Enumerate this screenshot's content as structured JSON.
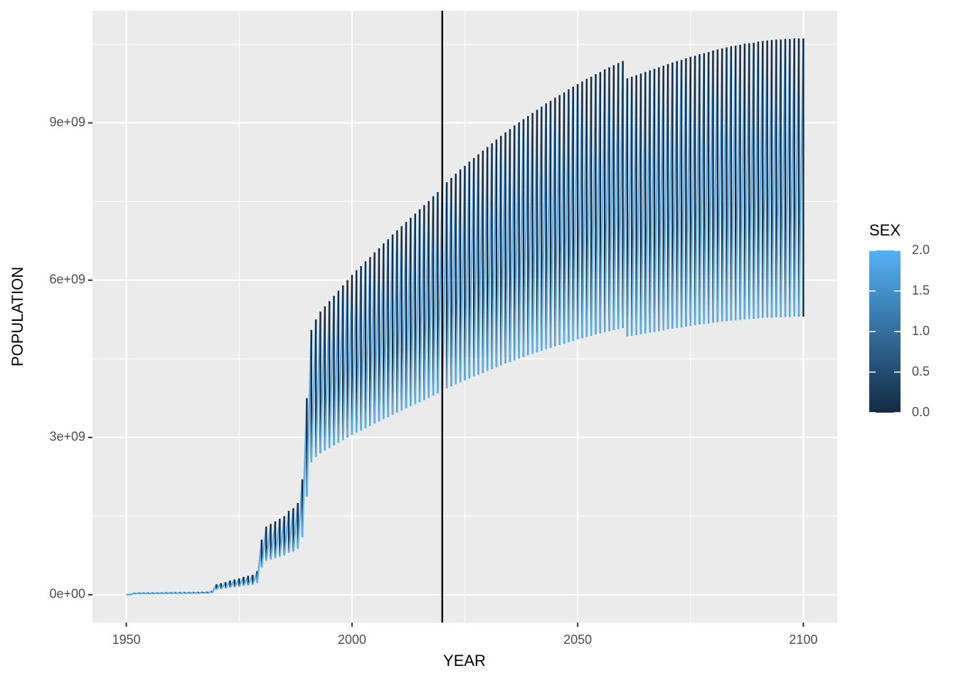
{
  "chart_data": {
    "type": "line",
    "xlabel": "YEAR",
    "ylabel": "POPULATION",
    "x": [
      1950,
      1951,
      1952,
      1953,
      1954,
      1955,
      1956,
      1957,
      1958,
      1959,
      1960,
      1961,
      1962,
      1963,
      1964,
      1965,
      1966,
      1967,
      1968,
      1969,
      1970,
      1971,
      1972,
      1973,
      1974,
      1975,
      1976,
      1977,
      1978,
      1979,
      1980,
      1981,
      1982,
      1983,
      1984,
      1985,
      1986,
      1987,
      1988,
      1989,
      1990,
      1991,
      1992,
      1993,
      1994,
      1995,
      1996,
      1997,
      1998,
      1999,
      2000,
      2001,
      2002,
      2003,
      2004,
      2005,
      2006,
      2007,
      2008,
      2009,
      2010,
      2011,
      2012,
      2013,
      2014,
      2015,
      2016,
      2017,
      2018,
      2019,
      2020,
      2021,
      2022,
      2023,
      2024,
      2025,
      2026,
      2027,
      2028,
      2029,
      2030,
      2031,
      2032,
      2033,
      2034,
      2035,
      2036,
      2037,
      2038,
      2039,
      2040,
      2041,
      2042,
      2043,
      2044,
      2045,
      2046,
      2047,
      2048,
      2049,
      2050,
      2051,
      2052,
      2053,
      2054,
      2055,
      2056,
      2057,
      2058,
      2059,
      2060,
      2061,
      2062,
      2063,
      2064,
      2065,
      2066,
      2067,
      2068,
      2069,
      2070,
      2071,
      2072,
      2073,
      2074,
      2075,
      2076,
      2077,
      2078,
      2079,
      2080,
      2081,
      2082,
      2083,
      2084,
      2085,
      2086,
      2087,
      2088,
      2089,
      2090,
      2091,
      2092,
      2093,
      2094,
      2095,
      2096,
      2097,
      2098,
      2099,
      2100
    ],
    "series": [
      {
        "sex": 0,
        "values": [
          5000000.0,
          5000000.0,
          35000000.0,
          36000000.0,
          37000000.0,
          38000000.0,
          39000000.0,
          40000000.0,
          41000000.0,
          42000000.0,
          43000000.0,
          44000000.0,
          45000000.0,
          46000000.0,
          47000000.0,
          48000000.0,
          50000000.0,
          52000000.0,
          55000000.0,
          70000000.0,
          200000000.0,
          220000000.0,
          240000000.0,
          270000000.0,
          290000000.0,
          310000000.0,
          340000000.0,
          360000000.0,
          380000000.0,
          450000000.0,
          1050000000.0,
          1300000000.0,
          1350000000.0,
          1400000000.0,
          1450000000.0,
          1500000000.0,
          1600000000.0,
          1650000000.0,
          1750000000.0,
          2200000000.0,
          3750000000.0,
          5050000000.0,
          5250000000.0,
          5400000000.0,
          5500000000.0,
          5600000000.0,
          5700000000.0,
          5800000000.0,
          5900000000.0,
          6000000000.0,
          6100000000.0,
          6190000000.0,
          6270000000.0,
          6360000000.0,
          6440000000.0,
          6530000000.0,
          6610000000.0,
          6700000000.0,
          6780000000.0,
          6870000000.0,
          6950000000.0,
          7030000000.0,
          7110000000.0,
          7190000000.0,
          7270000000.0,
          7350000000.0,
          7430000000.0,
          7510000000.0,
          7600000000.0,
          7680000000.0,
          7760000000.0,
          7870000000.0,
          7950000000.0,
          8030000000.0,
          8110000000.0,
          8180000000.0,
          8260000000.0,
          8330000000.0,
          8400000000.0,
          8470000000.0,
          8540000000.0,
          8610000000.0,
          8680000000.0,
          8750000000.0,
          8820000000.0,
          8880000000.0,
          8950000000.0,
          9010000000.0,
          9070000000.0,
          9130000000.0,
          9190000000.0,
          9250000000.0,
          9310000000.0,
          9370000000.0,
          9420000000.0,
          9480000000.0,
          9530000000.0,
          9580000000.0,
          9640000000.0,
          9690000000.0,
          9740000000.0,
          9790000000.0,
          9840000000.0,
          9880000000.0,
          9930000000.0,
          9970000000.0,
          10020000000.0,
          10060000000.0,
          10100000000.0,
          10140000000.0,
          10180000000.0,
          9850000000.0,
          9880000000.0,
          9910000000.0,
          9940000000.0,
          9970000000.0,
          10000000000.0,
          10030000000.0,
          10060000000.0,
          10090000000.0,
          10120000000.0,
          10150000000.0,
          10180000000.0,
          10200000000.0,
          10230000000.0,
          10260000000.0,
          10280000000.0,
          10310000000.0,
          10330000000.0,
          10350000000.0,
          10380000000.0,
          10400000000.0,
          10420000000.0,
          10440000000.0,
          10460000000.0,
          10470000000.0,
          10490000000.0,
          10510000000.0,
          10520000000.0,
          10530000000.0,
          10550000000.0,
          10560000000.0,
          10570000000.0,
          10580000000.0,
          10590000000.0,
          10590000000.0,
          10600000000.0,
          10600000000.0,
          10610000000.0,
          10610000000.0,
          10610000000.0
        ]
      },
      {
        "sex": 1,
        "values": [
          2500000.0,
          2500000.0,
          17500000.0,
          18000000.0,
          18500000.0,
          19000000.0,
          19500000.0,
          20000000.0,
          20500000.0,
          21000000.0,
          21500000.0,
          22000000.0,
          22500000.0,
          23000000.0,
          23500000.0,
          24000000.0,
          25000000.0,
          26000000.0,
          27500000.0,
          35000000.0,
          100000000.0,
          110000000.0,
          120000000.0,
          135000000.0,
          145000000.0,
          155000000.0,
          170000000.0,
          180000000.0,
          190000000.0,
          225000000.0,
          525000000.0,
          650000000.0,
          675000000.0,
          700000000.0,
          725000000.0,
          750000000.0,
          800000000.0,
          825000000.0,
          875000000.0,
          1100000000.0,
          1875000000.0,
          2525000000.0,
          2625000000.0,
          2700000000.0,
          2750000000.0,
          2800000000.0,
          2850000000.0,
          2900000000.0,
          2950000000.0,
          3000000000.0,
          3050000000.0,
          3095000000.0,
          3135000000.0,
          3180000000.0,
          3220000000.0,
          3265000000.0,
          3305000000.0,
          3350000000.0,
          3390000000.0,
          3435000000.0,
          3475000000.0,
          3515000000.0,
          3555000000.0,
          3595000000.0,
          3635000000.0,
          3675000000.0,
          3715000000.0,
          3755000000.0,
          3800000000.0,
          3840000000.0,
          3880000000.0,
          3935000000.0,
          3975000000.0,
          4015000000.0,
          4055000000.0,
          4090000000.0,
          4130000000.0,
          4165000000.0,
          4200000000.0,
          4235000000.0,
          4270000000.0,
          4305000000.0,
          4340000000.0,
          4375000000.0,
          4410000000.0,
          4440000000.0,
          4475000000.0,
          4505000000.0,
          4535000000.0,
          4565000000.0,
          4595000000.0,
          4625000000.0,
          4655000000.0,
          4685000000.0,
          4710000000.0,
          4740000000.0,
          4765000000.0,
          4790000000.0,
          4820000000.0,
          4845000000.0,
          4870000000.0,
          4895000000.0,
          4920000000.0,
          4940000000.0,
          4965000000.0,
          4985000000.0,
          5010000000.0,
          5030000000.0,
          5050000000.0,
          5070000000.0,
          5090000000.0,
          4925000000.0,
          4940000000.0,
          4955000000.0,
          4970000000.0,
          4985000000.0,
          5000000000.0,
          5015000000.0,
          5030000000.0,
          5045000000.0,
          5060000000.0,
          5075000000.0,
          5090000000.0,
          5100000000.0,
          5115000000.0,
          5130000000.0,
          5140000000.0,
          5155000000.0,
          5165000000.0,
          5175000000.0,
          5190000000.0,
          5200000000.0,
          5210000000.0,
          5220000000.0,
          5230000000.0,
          5235000000.0,
          5245000000.0,
          5255000000.0,
          5260000000.0,
          5265000000.0,
          5275000000.0,
          5280000000.0,
          5285000000.0,
          5290000000.0,
          5295000000.0,
          5295000000.0,
          5300000000.0,
          5300000000.0,
          5305000000.0,
          5305000000.0,
          5305000000.0
        ]
      },
      {
        "sex": 2,
        "values": [
          2500000.0,
          2500000.0,
          17500000.0,
          18000000.0,
          18500000.0,
          19000000.0,
          19500000.0,
          20000000.0,
          20500000.0,
          21000000.0,
          21500000.0,
          22000000.0,
          22500000.0,
          23000000.0,
          23500000.0,
          24000000.0,
          25000000.0,
          26000000.0,
          27500000.0,
          35000000.0,
          100000000.0,
          110000000.0,
          120000000.0,
          135000000.0,
          145000000.0,
          155000000.0,
          170000000.0,
          180000000.0,
          190000000.0,
          225000000.0,
          525000000.0,
          650000000.0,
          675000000.0,
          700000000.0,
          725000000.0,
          750000000.0,
          800000000.0,
          825000000.0,
          875000000.0,
          1100000000.0,
          1875000000.0,
          2525000000.0,
          2625000000.0,
          2700000000.0,
          2750000000.0,
          2800000000.0,
          2850000000.0,
          2900000000.0,
          2950000000.0,
          3000000000.0,
          3050000000.0,
          3095000000.0,
          3135000000.0,
          3180000000.0,
          3220000000.0,
          3265000000.0,
          3305000000.0,
          3350000000.0,
          3390000000.0,
          3435000000.0,
          3475000000.0,
          3515000000.0,
          3555000000.0,
          3595000000.0,
          3635000000.0,
          3675000000.0,
          3715000000.0,
          3755000000.0,
          3800000000.0,
          3840000000.0,
          3880000000.0,
          3935000000.0,
          3975000000.0,
          4015000000.0,
          4055000000.0,
          4090000000.0,
          4130000000.0,
          4165000000.0,
          4200000000.0,
          4235000000.0,
          4270000000.0,
          4305000000.0,
          4340000000.0,
          4375000000.0,
          4410000000.0,
          4440000000.0,
          4475000000.0,
          4505000000.0,
          4535000000.0,
          4565000000.0,
          4595000000.0,
          4625000000.0,
          4655000000.0,
          4685000000.0,
          4710000000.0,
          4740000000.0,
          4765000000.0,
          4790000000.0,
          4820000000.0,
          4845000000.0,
          4870000000.0,
          4895000000.0,
          4920000000.0,
          4940000000.0,
          4965000000.0,
          4985000000.0,
          5010000000.0,
          5030000000.0,
          5050000000.0,
          5070000000.0,
          5090000000.0,
          4925000000.0,
          4940000000.0,
          4955000000.0,
          4970000000.0,
          4985000000.0,
          5000000000.0,
          5015000000.0,
          5030000000.0,
          5045000000.0,
          5060000000.0,
          5075000000.0,
          5090000000.0,
          5100000000.0,
          5115000000.0,
          5130000000.0,
          5140000000.0,
          5155000000.0,
          5165000000.0,
          5175000000.0,
          5190000000.0,
          5200000000.0,
          5210000000.0,
          5220000000.0,
          5230000000.0,
          5235000000.0,
          5245000000.0,
          5255000000.0,
          5260000000.0,
          5265000000.0,
          5275000000.0,
          5280000000.0,
          5285000000.0,
          5290000000.0,
          5295000000.0,
          5295000000.0,
          5300000000.0,
          5300000000.0,
          5305000000.0,
          5305000000.0,
          5305000000.0
        ]
      }
    ],
    "xlim": [
      1942.5,
      2107.5
    ],
    "xticks": [
      1950,
      2000,
      2050,
      2100
    ],
    "x_minor_grid": [
      1975,
      2025,
      2075
    ],
    "ylim": [
      -530000000.0,
      11140000000.0
    ],
    "yticks": [
      {
        "value": 0,
        "label": "0e+00"
      },
      {
        "value": 3000000000.0,
        "label": "3e+09"
      },
      {
        "value": 6000000000.0,
        "label": "6e+09"
      },
      {
        "value": 9000000000.0,
        "label": "9e+09"
      }
    ],
    "y_minor_grid": [
      1500000000.0,
      4500000000.0,
      7500000000.0,
      10500000000.0
    ],
    "vline": 2020,
    "vline_color": "#000000",
    "grid": true,
    "background": "#EBEBEB",
    "colorbar": {
      "title": "SEX",
      "lim": [
        0,
        2
      ],
      "low": "#132B43",
      "high": "#56B1F7",
      "ticks": [
        {
          "value": 0,
          "label": "0.0"
        },
        {
          "value": 0.5,
          "label": "0.5"
        },
        {
          "value": 1,
          "label": "1.0"
        },
        {
          "value": 1.5,
          "label": "1.5"
        },
        {
          "value": 2,
          "label": "2.0"
        }
      ]
    }
  }
}
